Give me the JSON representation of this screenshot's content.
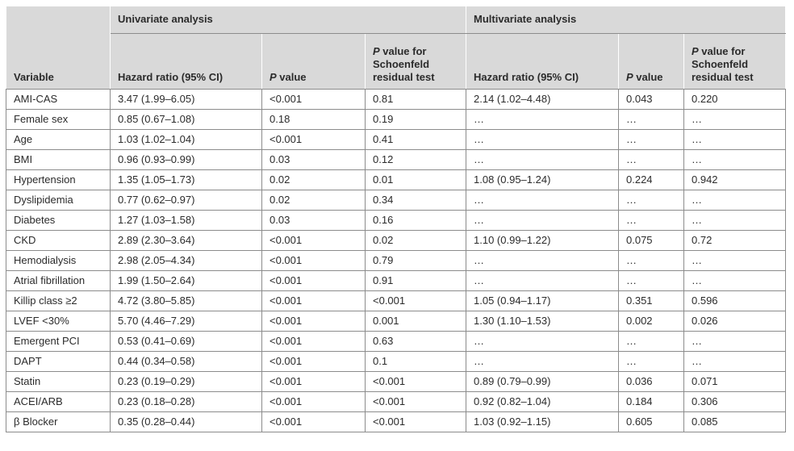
{
  "header": {
    "variable_label": "Variable",
    "univariate_title": "Univariate analysis",
    "multivariate_title": "Multivariate analysis",
    "hr_label": "Hazard ratio (95% CI)",
    "p_italic": "P",
    "p_rest": " value",
    "schoenfeld_rest": " value for Schoenfeld residual test"
  },
  "rows": [
    [
      "AMI-CAS",
      "3.47 (1.99–6.05)",
      "<0.001",
      "0.81",
      "2.14 (1.02–4.48)",
      "0.043",
      "0.220"
    ],
    [
      "Female sex",
      "0.85 (0.67–1.08)",
      "0.18",
      "0.19",
      "…",
      "…",
      "…"
    ],
    [
      "Age",
      "1.03 (1.02–1.04)",
      "<0.001",
      "0.41",
      "…",
      "…",
      "…"
    ],
    [
      "BMI",
      "0.96 (0.93–0.99)",
      "0.03",
      "0.12",
      "…",
      "…",
      "…"
    ],
    [
      "Hypertension",
      "1.35 (1.05–1.73)",
      "0.02",
      "0.01",
      "1.08 (0.95–1.24)",
      "0.224",
      "0.942"
    ],
    [
      "Dyslipidemia",
      "0.77 (0.62–0.97)",
      "0.02",
      "0.34",
      "…",
      "…",
      "…"
    ],
    [
      "Diabetes",
      "1.27 (1.03–1.58)",
      "0.03",
      "0.16",
      "…",
      "…",
      "…"
    ],
    [
      "CKD",
      "2.89 (2.30–3.64)",
      "<0.001",
      "0.02",
      "1.10 (0.99–1.22)",
      "0.075",
      "0.72"
    ],
    [
      "Hemodialysis",
      "2.98 (2.05–4.34)",
      "<0.001",
      "0.79",
      "…",
      "…",
      "…"
    ],
    [
      "Atrial fibrillation",
      "1.99 (1.50–2.64)",
      "<0.001",
      "0.91",
      "…",
      "…",
      "…"
    ],
    [
      "Killip class ≥2",
      "4.72 (3.80–5.85)",
      "<0.001",
      "<0.001",
      "1.05 (0.94–1.17)",
      "0.351",
      "0.596"
    ],
    [
      "LVEF <30%",
      "5.70 (4.46–7.29)",
      "<0.001",
      "0.001",
      "1.30 (1.10–1.53)",
      "0.002",
      "0.026"
    ],
    [
      "Emergent PCI",
      "0.53 (0.41–0.69)",
      "<0.001",
      "0.63",
      "…",
      "…",
      "…"
    ],
    [
      "DAPT",
      "0.44 (0.34–0.58)",
      "<0.001",
      "0.1",
      "…",
      "…",
      "…"
    ],
    [
      "Statin",
      "0.23 (0.19–0.29)",
      "<0.001",
      "<0.001",
      "0.89 (0.79–0.99)",
      "0.036",
      "0.071"
    ],
    [
      "ACEI/ARB",
      "0.23 (0.18–0.28)",
      "<0.001",
      "<0.001",
      "0.92 (0.82–1.04)",
      "0.184",
      "0.306"
    ],
    [
      "β Blocker",
      "0.35 (0.28–0.44)",
      "<0.001",
      "<0.001",
      "1.03 (0.92–1.15)",
      "0.605",
      "0.085"
    ]
  ]
}
